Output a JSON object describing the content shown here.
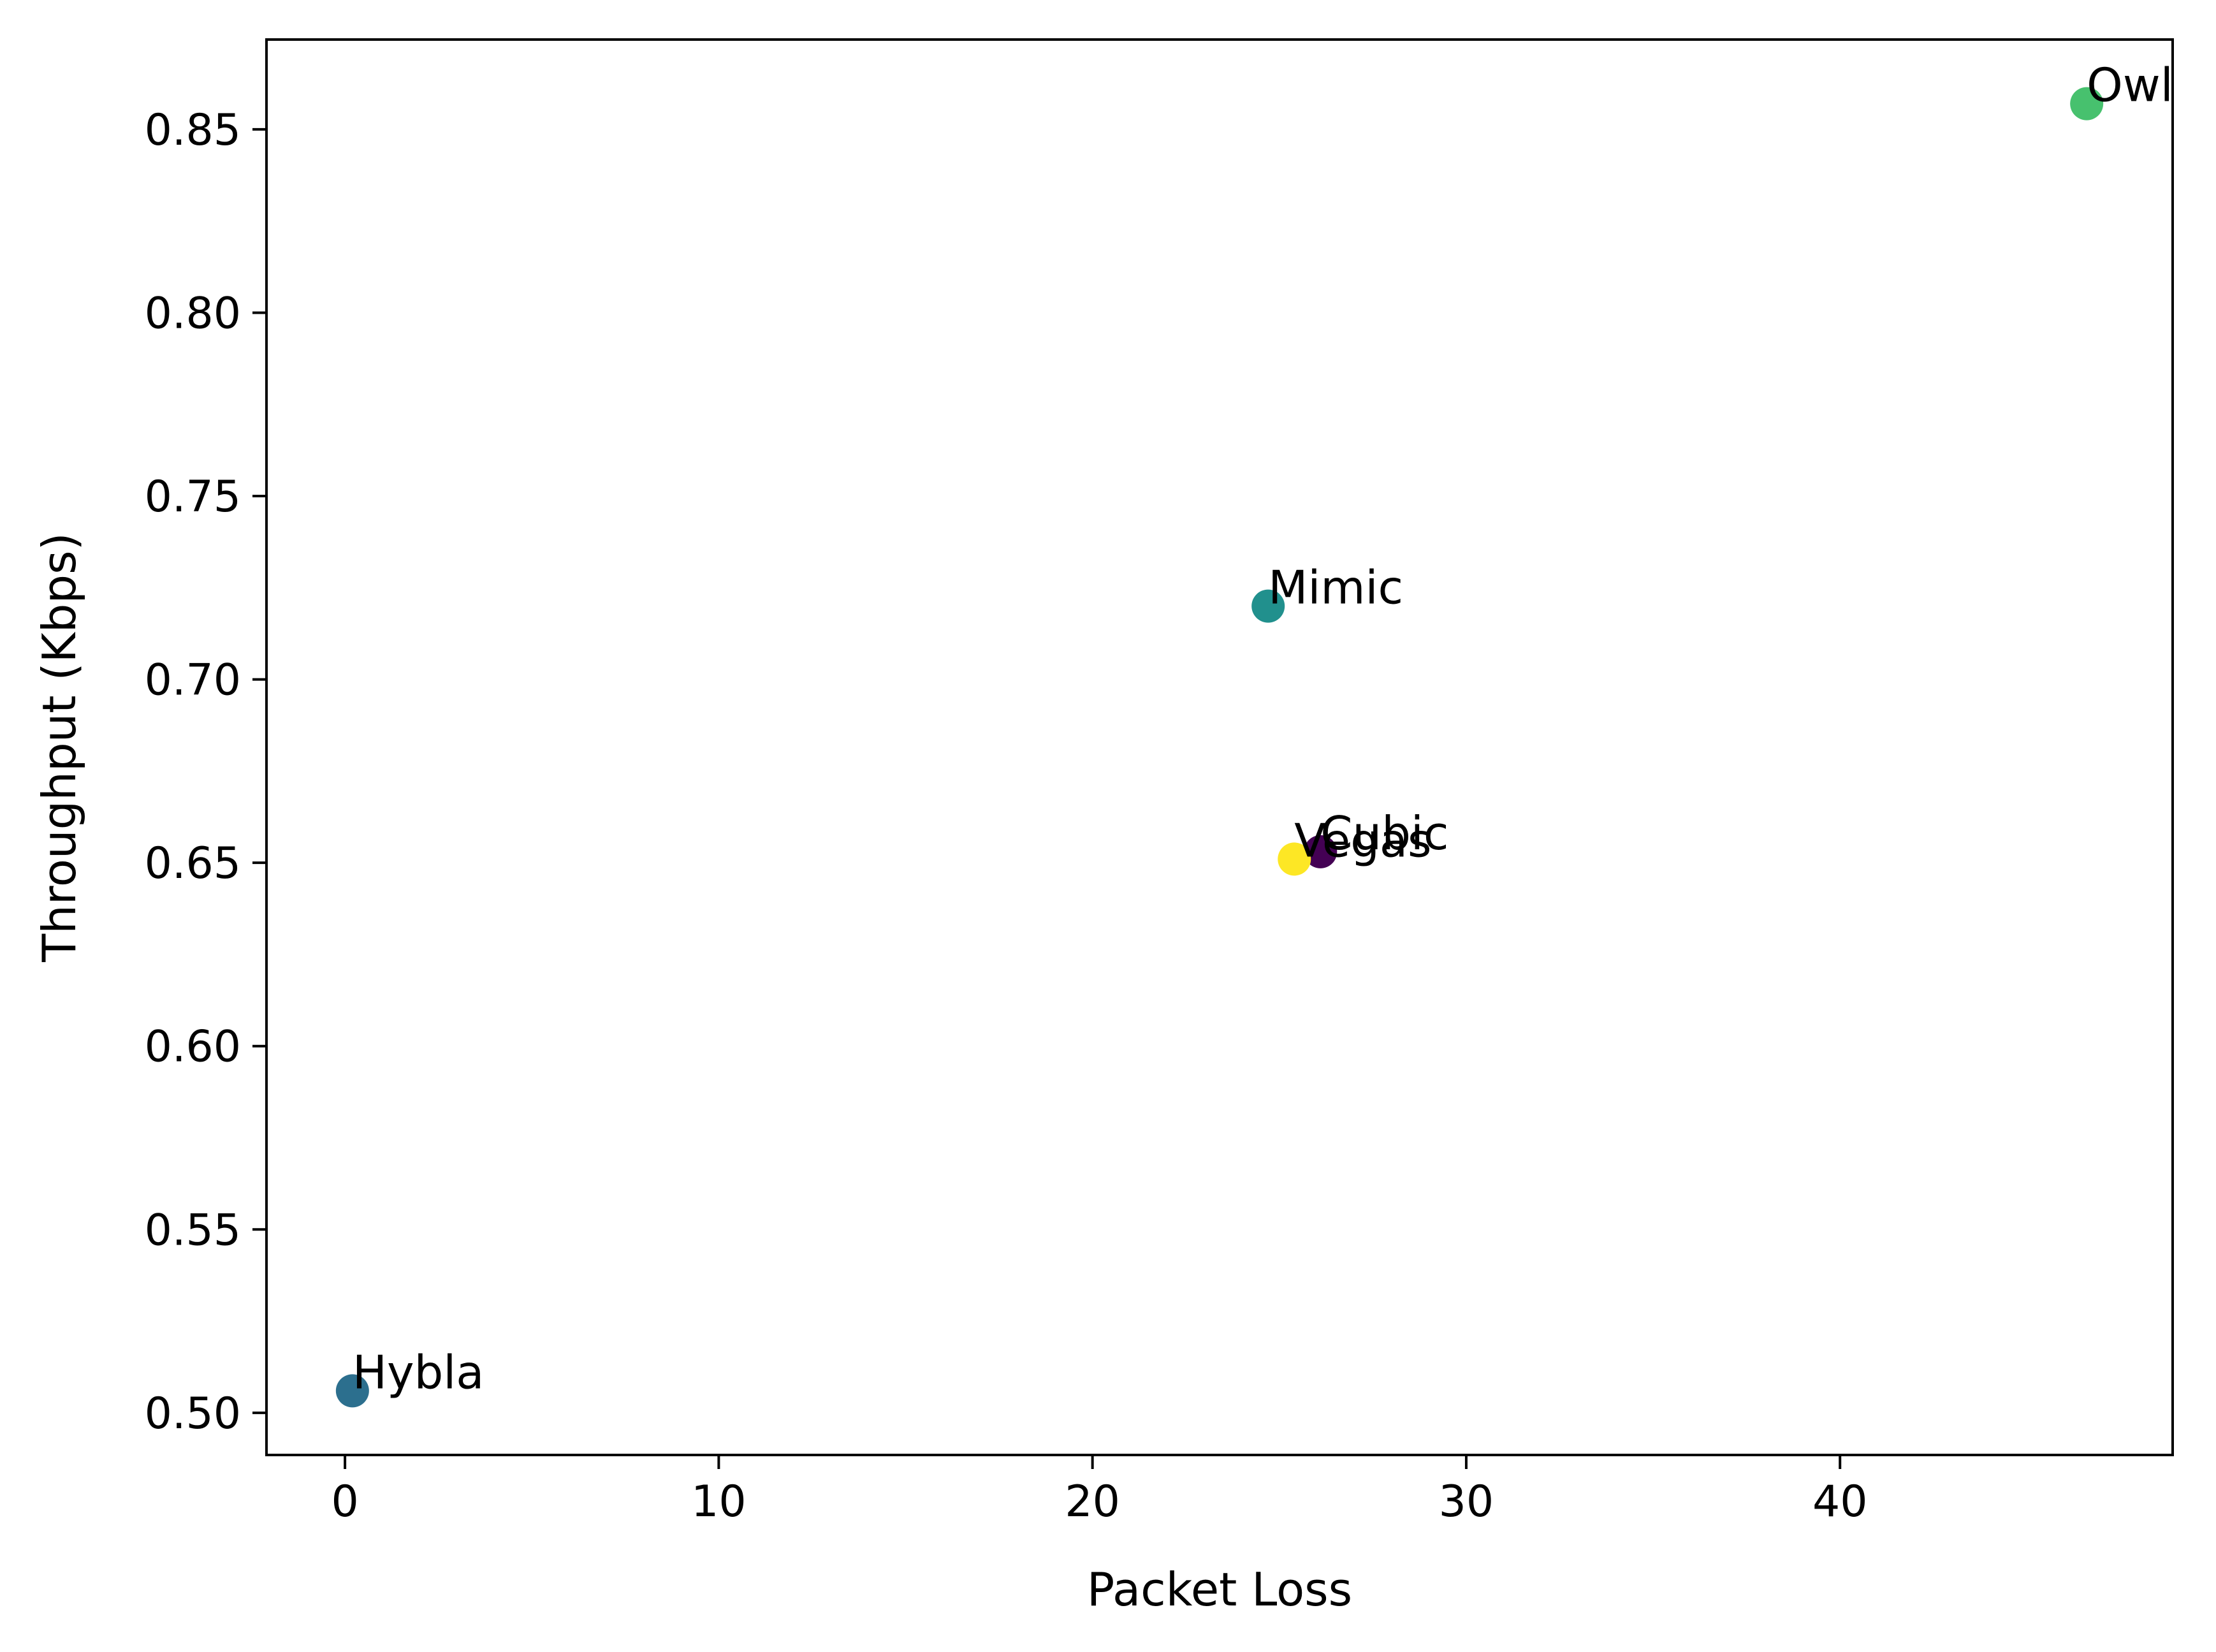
{
  "chart_data": {
    "type": "scatter",
    "title": "",
    "xlabel": "Packet Loss",
    "ylabel": "Throughput (Kbps)",
    "xlim": [
      -2.1,
      48.9
    ],
    "ylim": [
      0.4885,
      0.8745
    ],
    "xticks": [
      0,
      10,
      20,
      30,
      40
    ],
    "xtick_labels": [
      "0",
      "10",
      "20",
      "30",
      "40"
    ],
    "yticks": [
      0.5,
      0.55,
      0.6,
      0.65,
      0.7,
      0.75,
      0.8,
      0.85
    ],
    "ytick_labels": [
      "0.50",
      "0.55",
      "0.60",
      "0.65",
      "0.70",
      "0.75",
      "0.80",
      "0.85"
    ],
    "grid": false,
    "points": [
      {
        "label": "Cubic",
        "x": 26.1,
        "y": 0.653,
        "color": "#440154"
      },
      {
        "label": "Hybla",
        "x": 0.2,
        "y": 0.506,
        "color": "#2c6f8e"
      },
      {
        "label": "Mimic",
        "x": 24.7,
        "y": 0.72,
        "color": "#21908d"
      },
      {
        "label": "Owl",
        "x": 46.6,
        "y": 0.857,
        "color": "#47c16e"
      },
      {
        "label": "Vegas",
        "x": 25.4,
        "y": 0.651,
        "color": "#fde725"
      }
    ]
  }
}
